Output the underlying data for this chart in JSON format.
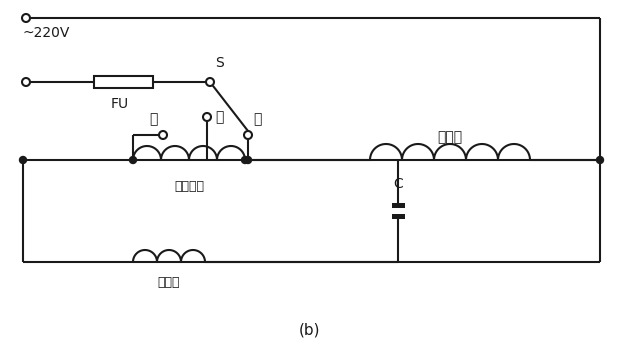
{
  "bg_color": "#ffffff",
  "line_color": "#1a1a1a",
  "label_220v": "~220V",
  "label_fu": "FU",
  "label_s": "S",
  "label_low": "低",
  "label_mid": "中",
  "label_high": "高",
  "label_aux": "辅助绕组",
  "label_sub": "副绕组",
  "label_main": "主绕组",
  "label_cap": "C",
  "label_b": "(b)"
}
